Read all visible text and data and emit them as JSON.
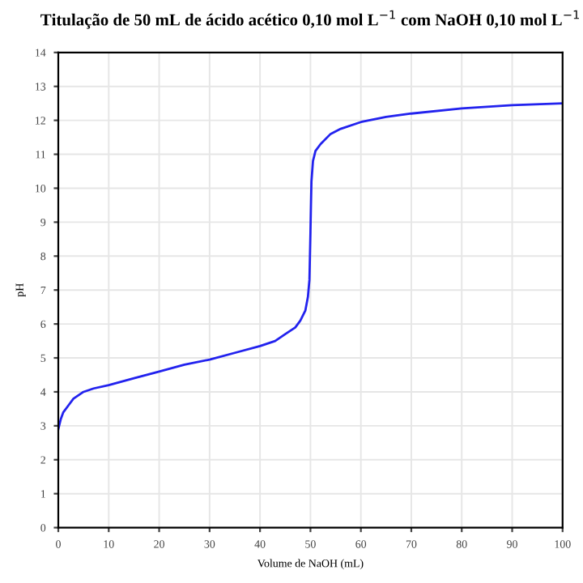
{
  "chart_data": {
    "type": "line",
    "title": "Titulação de 50 mL de ácido acético 0,10 mol L$^{−1}$ com NaOH 0,10 mol L$^{−1}$",
    "xlabel": "Volume de NaOH (mL)",
    "ylabel": "pH",
    "series": [
      {
        "color": "#2222ee",
        "x": [
          0,
          0.5,
          1,
          2,
          3,
          5,
          7,
          10,
          15,
          20,
          25,
          30,
          35,
          40,
          43,
          45,
          47,
          48,
          49,
          49.5,
          49.8,
          49.9,
          50,
          50.1,
          50.2,
          50.5,
          51,
          52,
          54,
          56,
          60,
          65,
          70,
          80,
          90,
          100
        ],
        "values": [
          2.9,
          3.2,
          3.4,
          3.6,
          3.8,
          4.0,
          4.1,
          4.2,
          4.4,
          4.6,
          4.8,
          4.95,
          5.15,
          5.35,
          5.5,
          5.7,
          5.9,
          6.1,
          6.4,
          6.8,
          7.3,
          8.0,
          8.7,
          9.5,
          10.2,
          10.8,
          11.1,
          11.3,
          11.6,
          11.75,
          11.95,
          12.1,
          12.2,
          12.35,
          12.45,
          12.5
        ]
      }
    ],
    "xlim": [
      0,
      100
    ],
    "xticks": [
      0,
      10,
      20,
      30,
      40,
      50,
      60,
      70,
      80,
      90,
      100
    ],
    "ylim": [
      0,
      14
    ],
    "yticks": [
      0,
      1,
      2,
      3,
      4,
      5,
      6,
      7,
      8,
      9,
      10,
      11,
      12,
      13,
      14
    ],
    "grid": true,
    "marker": "none",
    "line_style": "solid"
  }
}
